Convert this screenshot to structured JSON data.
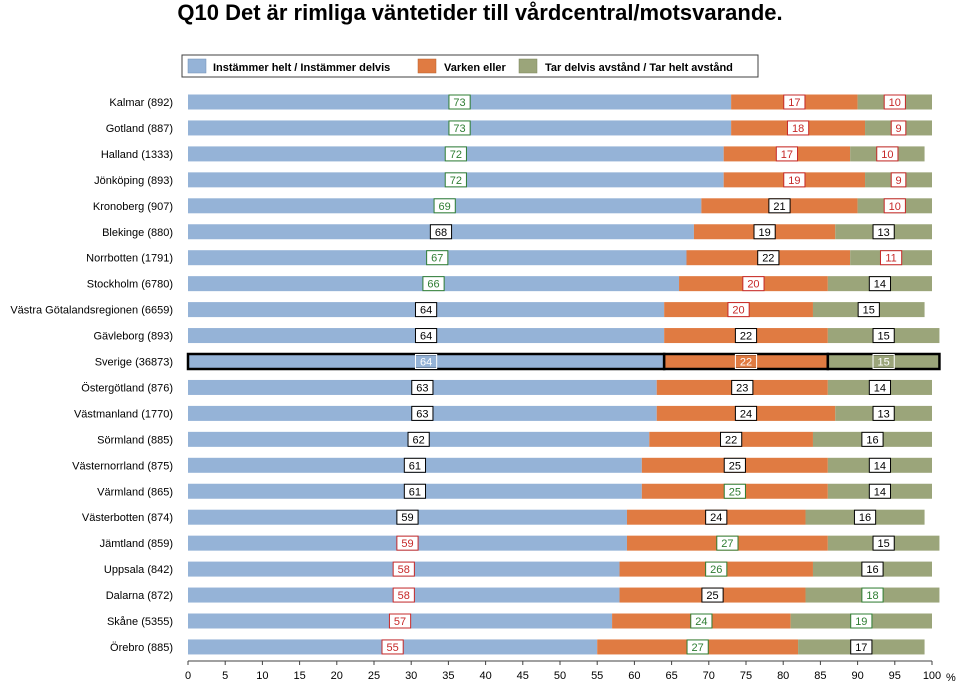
{
  "title": "Q10 Det är rimliga väntetider till vårdcentral/motsvarande.",
  "chart_data": {
    "type": "bar",
    "orientation": "horizontal",
    "stacked": true,
    "title": "Q10 Det är rimliga väntetider till vårdcentral/motsvarande.",
    "xlabel": "%",
    "xlim": [
      0,
      100
    ],
    "xticks": [
      0,
      5,
      10,
      15,
      20,
      25,
      30,
      35,
      40,
      45,
      50,
      55,
      60,
      65,
      70,
      75,
      80,
      85,
      90,
      95,
      100
    ],
    "legend_position": "top",
    "categories": [
      "Kalmar (892)",
      "Gotland (887)",
      "Halland (1333)",
      "Jönköping (893)",
      "Kronoberg (907)",
      "Blekinge (880)",
      "Norrbotten (1791)",
      "Stockholm (6780)",
      "Västra Götalandsregionen (6659)",
      "Gävleborg (893)",
      "Sverige (36873)",
      "Östergötland (876)",
      "Västmanland (1770)",
      "Sörmland (885)",
      "Västernorrland (875)",
      "Värmland (865)",
      "Västerbotten (874)",
      "Jämtland (859)",
      "Uppsala (842)",
      "Dalarna (872)",
      "Skåne (5355)",
      "Örebro (885)"
    ],
    "highlight_category": "Sverige (36873)",
    "series": [
      {
        "name": "Instämmer helt / Instämmer delvis",
        "color": "#95B3D7",
        "values": [
          73,
          73,
          72,
          72,
          69,
          68,
          67,
          66,
          64,
          64,
          64,
          63,
          63,
          62,
          61,
          61,
          59,
          59,
          58,
          58,
          57,
          55
        ],
        "label_style": [
          "g",
          "g",
          "g",
          "g",
          "g",
          "k",
          "g",
          "g",
          "k",
          "k",
          "w",
          "k",
          "k",
          "k",
          "k",
          "k",
          "k",
          "r",
          "r",
          "r",
          "r",
          "r"
        ]
      },
      {
        "name": "Varken eller",
        "color": "#E07B42",
        "values": [
          17,
          18,
          17,
          19,
          21,
          19,
          22,
          20,
          20,
          22,
          22,
          23,
          24,
          22,
          25,
          25,
          24,
          27,
          26,
          25,
          24,
          27
        ],
        "label_style": [
          "r",
          "r",
          "r",
          "r",
          "k",
          "k",
          "k",
          "r",
          "r",
          "k",
          "w",
          "k",
          "k",
          "k",
          "k",
          "g",
          "k",
          "g",
          "g",
          "k",
          "g",
          "g"
        ]
      },
      {
        "name": "Tar delvis avstånd / Tar helt avstånd",
        "color": "#9BA57A",
        "values": [
          10,
          9,
          10,
          9,
          10,
          13,
          11,
          14,
          15,
          15,
          15,
          14,
          13,
          16,
          14,
          14,
          16,
          15,
          16,
          18,
          19,
          17
        ],
        "label_style": [
          "r",
          "r",
          "r",
          "r",
          "r",
          "k",
          "r",
          "k",
          "k",
          "k",
          "w",
          "k",
          "k",
          "k",
          "k",
          "k",
          "k",
          "k",
          "k",
          "g",
          "g",
          "k"
        ]
      }
    ]
  }
}
